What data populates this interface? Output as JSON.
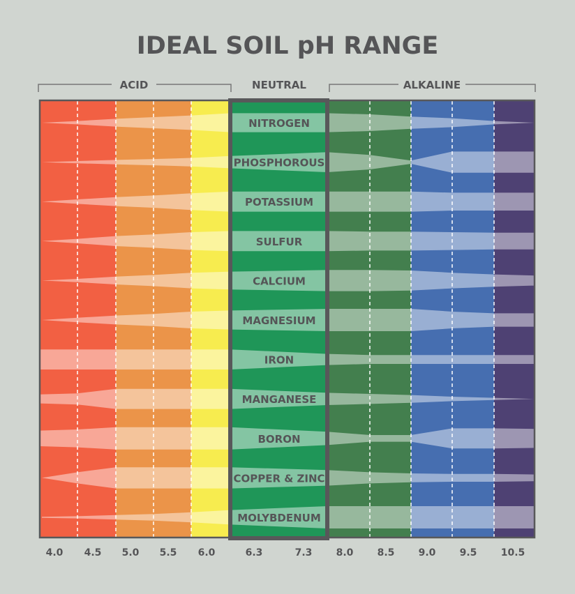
{
  "chart_data": {
    "type": "area",
    "title": "IDEAL SOIL pH RANGE",
    "zones": [
      {
        "label": "ACID"
      },
      {
        "label": "NEUTRAL"
      },
      {
        "label": "ALKALINE"
      }
    ],
    "x_tick_labels": [
      "4.0",
      "4.5",
      "5.0",
      "5.5",
      "6.0",
      "6.3",
      "7.3",
      "8.0",
      "8.5",
      "9.0",
      "9.5",
      "10.5"
    ],
    "column_colors": {
      "acid_red": "#f26043",
      "acid_orange": "#eb9449",
      "acid_yellow": "#f7ec4f",
      "neutral_green": "#1f9658",
      "alkaline_green": "#437f4e",
      "alkaline_blue": "#466eb0",
      "alkaline_purple": "#4e4173"
    },
    "availability_note_scale": [
      0,
      1
    ],
    "series": [
      {
        "name": "NITROGEN",
        "availability": [
          0,
          0.15,
          0.35,
          0.5,
          0.65,
          0.85,
          0.85,
          0.75,
          0.55,
          0.4,
          0.15,
          0
        ]
      },
      {
        "name": "PHOSPHOROUS",
        "availability": [
          0,
          0.1,
          0.2,
          0.28,
          0.38,
          0.55,
          0.9,
          0.65,
          0.15,
          0.95,
          0.95,
          0.95
        ]
      },
      {
        "name": "POTASSIUM",
        "availability": [
          0,
          0.2,
          0.4,
          0.55,
          0.75,
          0.9,
          0.9,
          0.9,
          0.9,
          0.8,
          0.8,
          0.8
        ]
      },
      {
        "name": "SULFUR",
        "availability": [
          0,
          0.2,
          0.45,
          0.6,
          0.8,
          0.9,
          0.9,
          0.85,
          0.85,
          0.8,
          0.75,
          0.75
        ]
      },
      {
        "name": "CALCIUM",
        "availability": [
          0,
          0.15,
          0.35,
          0.5,
          0.7,
          0.8,
          0.95,
          0.95,
          0.9,
          0.7,
          0.55,
          0.45
        ]
      },
      {
        "name": "MAGNESIUM",
        "availability": [
          0,
          0.2,
          0.4,
          0.55,
          0.75,
          0.85,
          1,
          1,
          1,
          0.75,
          0.6,
          0.6
        ]
      },
      {
        "name": "IRON",
        "availability": [
          0.9,
          0.9,
          0.9,
          0.9,
          0.9,
          0.9,
          0.5,
          0.4,
          0.4,
          0.4,
          0.4,
          0.4
        ]
      },
      {
        "name": "MANGANESE",
        "availability": [
          0.4,
          0.5,
          0.9,
          0.9,
          0.9,
          0.9,
          0.55,
          0.45,
          0.35,
          0.2,
          0.1,
          0
        ]
      },
      {
        "name": "BORON",
        "availability": [
          0.7,
          0.8,
          1,
          1,
          1,
          1,
          0.6,
          0.3,
          0.3,
          0.9,
          0.9,
          0.85
        ]
      },
      {
        "name": "COPPER & ZINC",
        "availability": [
          0,
          0.5,
          0.95,
          0.95,
          0.95,
          0.95,
          0.7,
          0.5,
          0.4,
          0.35,
          0.35,
          0.3
        ]
      },
      {
        "name": "MOLYBDENUM",
        "availability": [
          0.05,
          0.1,
          0.2,
          0.3,
          0.45,
          0.65,
          1,
          1,
          1,
          1,
          1,
          1
        ]
      }
    ]
  }
}
